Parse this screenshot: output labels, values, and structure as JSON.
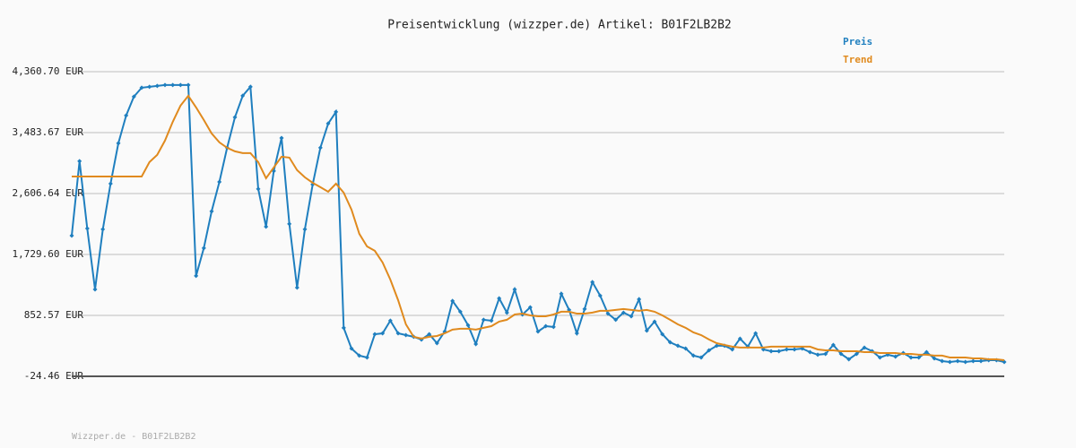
{
  "chart_data": {
    "type": "line",
    "title": "Preisentwicklung (wizzper.de) Artikel: B01F2LB2B2",
    "ylim": [
      -24.46,
      4360.7
    ],
    "yticks": [
      {
        "value": -24.46,
        "label": "-24.46 EUR"
      },
      {
        "value": 852.57,
        "label": "852.57 EUR"
      },
      {
        "value": 1729.6,
        "label": "1,729.60 EUR"
      },
      {
        "value": 2606.64,
        "label": "2,606.64 EUR"
      },
      {
        "value": 3483.67,
        "label": "3,483.67 EUR"
      },
      {
        "value": 4360.7,
        "label": "4,360.70 EUR"
      }
    ],
    "grid": true,
    "legend": "top-right",
    "series": [
      {
        "name": "Preis",
        "color": "#1f7fbf",
        "markers": true,
        "values": [
          2001,
          3072,
          2104,
          1227,
          2092,
          2749,
          3330,
          3730,
          4001,
          4130,
          4143,
          4156,
          4169,
          4169,
          4169,
          4169,
          1421,
          1821,
          2350,
          2775,
          3266,
          3704,
          4014,
          4143,
          2672,
          2130,
          2930,
          3407,
          2169,
          1253,
          2092,
          2737,
          3266,
          3614,
          3782,
          673,
          376,
          273,
          247,
          582,
          595,
          776,
          595,
          569,
          544,
          505,
          582,
          453,
          621,
          1060,
          905,
          711,
          440,
          789,
          776,
          1098,
          892,
          1227,
          866,
          969,
          621,
          698,
          686,
          1163,
          931,
          595,
          944,
          1331,
          1137,
          879,
          789,
          892,
          840,
          1085,
          634,
          763,
          582,
          466,
          415,
          376,
          273,
          247,
          350,
          415,
          415,
          363,
          518,
          402,
          595,
          363,
          337,
          337,
          363,
          363,
          376,
          324,
          286,
          298,
          427,
          298,
          221,
          298,
          389,
          337,
          247,
          286,
          260,
          311,
          247,
          247,
          324,
          234,
          195,
          182,
          195,
          182,
          195,
          195,
          208,
          208,
          182
        ]
      },
      {
        "name": "Trend",
        "color": "#e08a1e",
        "markers": false,
        "values": [
          2852,
          2852,
          2852,
          2852,
          2852,
          2852,
          2852,
          2852,
          2852,
          2852,
          3059,
          3162,
          3369,
          3640,
          3872,
          4014,
          3846,
          3665,
          3472,
          3343,
          3266,
          3214,
          3188,
          3188,
          3059,
          2827,
          2982,
          3137,
          3124,
          2943,
          2840,
          2762,
          2698,
          2633,
          2749,
          2620,
          2375,
          2027,
          1846,
          1782,
          1614,
          1369,
          1072,
          724,
          544,
          518,
          544,
          556,
          595,
          647,
          660,
          660,
          647,
          673,
          698,
          763,
          789,
          866,
          879,
          853,
          840,
          840,
          866,
          905,
          905,
          879,
          879,
          892,
          918,
          918,
          931,
          944,
          931,
          918,
          931,
          905,
          853,
          789,
          724,
          673,
          608,
          569,
          505,
          453,
          427,
          402,
          389,
          389,
          389,
          389,
          402,
          402,
          402,
          402,
          402,
          402,
          363,
          350,
          350,
          337,
          337,
          337,
          324,
          324,
          311,
          311,
          311,
          298,
          298,
          286,
          286,
          273,
          273,
          247,
          247,
          247,
          234,
          234,
          221,
          221,
          208
        ]
      }
    ]
  },
  "footer": "Wizzper.de - B01F2LB2B2"
}
